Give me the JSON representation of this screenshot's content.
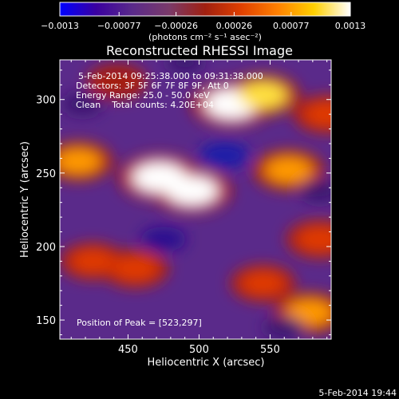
{
  "chart_data": {
    "type": "heatmap",
    "title": "Reconstructed RHESSI Image",
    "xlabel": "Heliocentric X (arcsec)",
    "ylabel": "Heliocentric Y (arcsec)",
    "xlim": [
      402,
      593
    ],
    "ylim": [
      137,
      327
    ],
    "x_ticks": [
      450,
      500,
      550
    ],
    "y_ticks": [
      150,
      200,
      250,
      300
    ],
    "colorbar": {
      "range": [
        -0.0013,
        0.0013
      ],
      "tick_values": [
        -0.0013,
        -0.00077,
        -0.00026,
        0.00026,
        0.00077,
        0.0013
      ],
      "tick_labels": [
        "−0.0013",
        "−0.00077",
        "−0.00026",
        "0.00026",
        "0.00077",
        "0.0013"
      ],
      "units": "(photons cm⁻² s⁻¹ asec⁻²)",
      "colors": [
        "#0000ff",
        "#3a00a0",
        "#5a2a8a",
        "#7a3a6a",
        "#a02010",
        "#e04000",
        "#ff8000",
        "#ffd000",
        "#ffffff"
      ]
    },
    "info_lines": [
      "5-Feb-2014 09:25:38.000 to 09:31:38.000",
      "Detectors: 3F 5F 6F 7F 8F 9F, Att 0",
      "Energy Range: 25.0 - 50.0 keV",
      "Clean    Total counts: 4.20E+04"
    ],
    "peak_text": "Position of Peak = [523,297]",
    "peak": [
      523,
      297
    ],
    "bright_regions": [
      {
        "x": 472,
        "y": 247,
        "level": 1.0
      },
      {
        "x": 495,
        "y": 238,
        "level": 0.95
      },
      {
        "x": 523,
        "y": 297,
        "level": 1.0
      },
      {
        "x": 545,
        "y": 303,
        "level": 0.85
      },
      {
        "x": 563,
        "y": 252,
        "level": 0.8
      },
      {
        "x": 442,
        "y": 312,
        "level": 0.55
      },
      {
        "x": 415,
        "y": 258,
        "level": 0.75
      },
      {
        "x": 455,
        "y": 185,
        "level": 0.7
      },
      {
        "x": 425,
        "y": 190,
        "level": 0.65
      },
      {
        "x": 545,
        "y": 175,
        "level": 0.65
      },
      {
        "x": 578,
        "y": 155,
        "level": 0.8
      },
      {
        "x": 585,
        "y": 205,
        "level": 0.7
      },
      {
        "x": 590,
        "y": 290,
        "level": 0.7
      }
    ],
    "dark_regions": [
      {
        "x": 518,
        "y": 262,
        "level": 0.9
      },
      {
        "x": 418,
        "y": 297,
        "level": 0.6
      },
      {
        "x": 475,
        "y": 205,
        "level": 0.75
      },
      {
        "x": 585,
        "y": 238,
        "level": 0.6
      },
      {
        "x": 560,
        "y": 145,
        "level": 0.6
      },
      {
        "x": 490,
        "y": 325,
        "level": 0.5
      }
    ]
  },
  "footer_date": "5-Feb-2014 19:44"
}
